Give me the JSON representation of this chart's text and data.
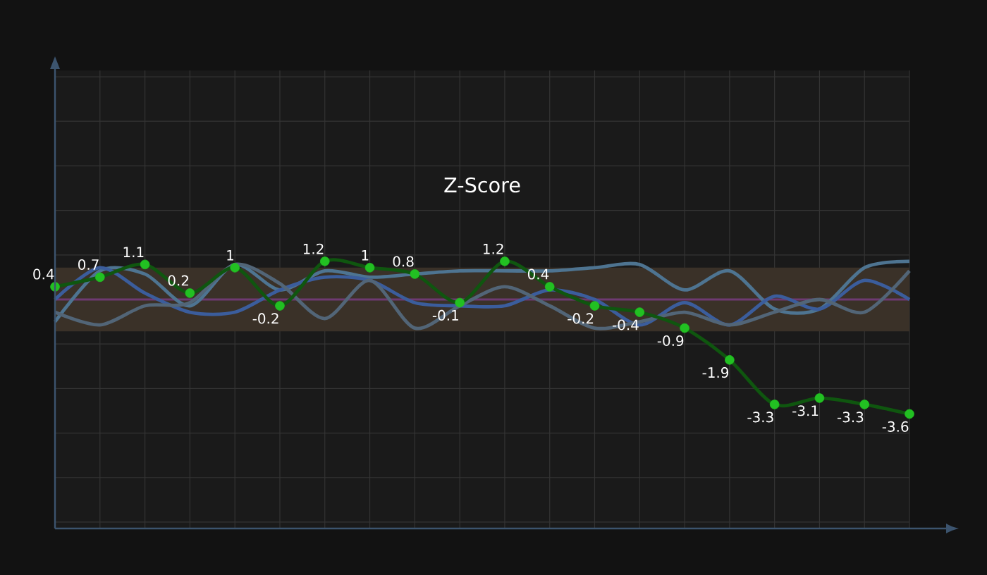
{
  "chart_data": {
    "type": "line",
    "title": "Z-Score",
    "categories": [
      null,
      null,
      null,
      null,
      null,
      null,
      null,
      null,
      null,
      null,
      null,
      null,
      null,
      null,
      null,
      null,
      null,
      null,
      null,
      null
    ],
    "series": [
      {
        "color": "#4e7491",
        "marker": "none",
        "values": [
          -0.7,
          0.9,
          0.8,
          -0.2,
          1.1,
          0.3,
          0.9,
          0.7,
          0.8,
          0.9,
          0.9,
          0.9,
          1.0,
          1.1,
          0.3,
          0.9,
          -0.3,
          -0.3,
          1.0,
          1.2
        ]
      },
      {
        "color": "#3b5d9c",
        "marker": "none",
        "values": [
          0,
          1.0,
          0.2,
          -0.4,
          -0.4,
          0.3,
          0.7,
          0.6,
          -0.1,
          -0.2,
          -0.2,
          0.3,
          0,
          -0.8,
          -0.1,
          -0.8,
          0.1,
          -0.3,
          0.6,
          0
        ]
      },
      {
        "color": "#526577",
        "marker": "none",
        "values": [
          -0.4,
          -0.8,
          -0.2,
          -0.1,
          1.1,
          0.5,
          -0.6,
          0.6,
          -0.9,
          -0.2,
          0.4,
          -0.2,
          -0.9,
          -0.7,
          -0.4,
          -0.8,
          -0.4,
          0,
          -0.4,
          0.9
        ]
      },
      {
        "color": "#22c022",
        "marker": "circle",
        "data_labels": true,
        "values": [
          0.4,
          0.7,
          1.1,
          0.2,
          1,
          -0.2,
          1.2,
          1,
          0.8,
          -0.1,
          1.2,
          0.4,
          -0.2,
          -0.4,
          -0.9,
          -1.9,
          -3.3,
          -3.1,
          -3.3,
          -3.6
        ]
      }
    ],
    "ylim": [
      -7.2,
      7.2
    ],
    "yticks": [
      {
        "value": -7,
        "label": null
      },
      {
        "value": -5.6,
        "label": null
      },
      {
        "value": -4.2,
        "label": null
      },
      {
        "value": -2.8,
        "label": null
      },
      {
        "value": -1.4,
        "label": null
      },
      {
        "value": 0,
        "label": null
      },
      {
        "value": 1.4,
        "label": null
      },
      {
        "value": 2.8,
        "label": null
      },
      {
        "value": 4.2,
        "label": null
      },
      {
        "value": 5.6,
        "label": null
      },
      {
        "value": 7,
        "label": null
      }
    ],
    "bands": [
      {
        "axis": "y",
        "from": -1,
        "to": 1,
        "color": "#3a3128"
      }
    ],
    "ref_lines": [
      {
        "axis": "y",
        "value": 0,
        "color": "#6e3a72"
      }
    ],
    "grid": true,
    "line_style": "solid"
  }
}
